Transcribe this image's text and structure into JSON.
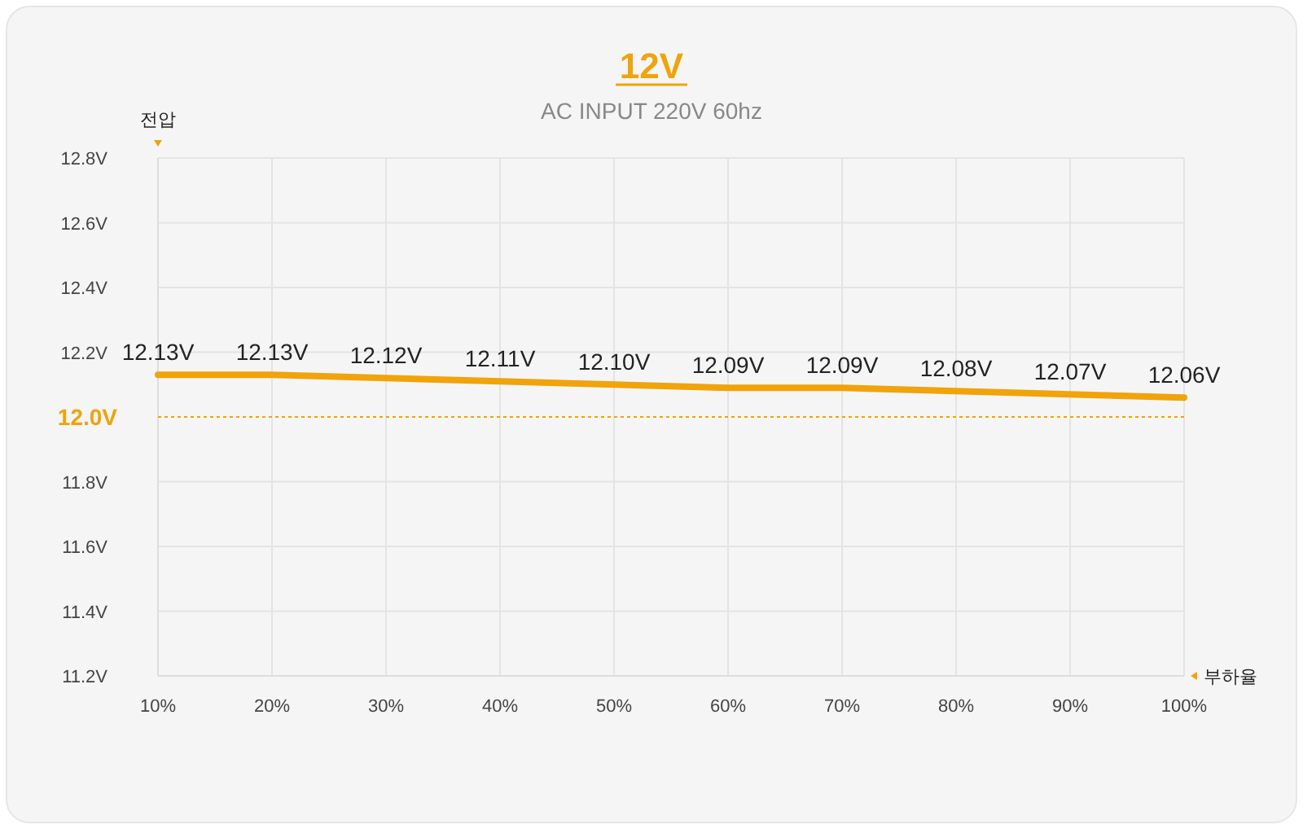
{
  "chart_data": {
    "type": "line",
    "title": "12V",
    "subtitle": "AC INPUT 220V 60hz",
    "ylabel": "전압",
    "xlabel": "부하율",
    "categories": [
      "10%",
      "20%",
      "30%",
      "40%",
      "50%",
      "60%",
      "70%",
      "80%",
      "90%",
      "100%"
    ],
    "series": [
      {
        "color": "#f0a30a",
        "values": [
          12.13,
          12.13,
          12.12,
          12.11,
          12.1,
          12.09,
          12.09,
          12.08,
          12.07,
          12.06
        ],
        "value_labels": [
          "12.13V",
          "12.13V",
          "12.12V",
          "12.11V",
          "12.10V",
          "12.09V",
          "12.09V",
          "12.08V",
          "12.07V",
          "12.06V"
        ]
      }
    ],
    "ylim": [
      11.2,
      12.8
    ],
    "yticks": [
      {
        "value": 11.2,
        "label": "11.2V"
      },
      {
        "value": 11.4,
        "label": "11.4V"
      },
      {
        "value": 11.6,
        "label": "11.6V"
      },
      {
        "value": 11.8,
        "label": "11.8V"
      },
      {
        "value": 12.2,
        "label": "12.2V"
      },
      {
        "value": 12.4,
        "label": "12.4V"
      },
      {
        "value": 12.6,
        "label": "12.6V"
      },
      {
        "value": 12.8,
        "label": "12.8V"
      }
    ],
    "ref_lines": [
      {
        "axis": "y",
        "value": 12.0,
        "label": "12.0V",
        "color": "#f0a30a",
        "line_style": "dotted"
      }
    ],
    "grid": true,
    "marker": "none",
    "line_style": "solid"
  }
}
